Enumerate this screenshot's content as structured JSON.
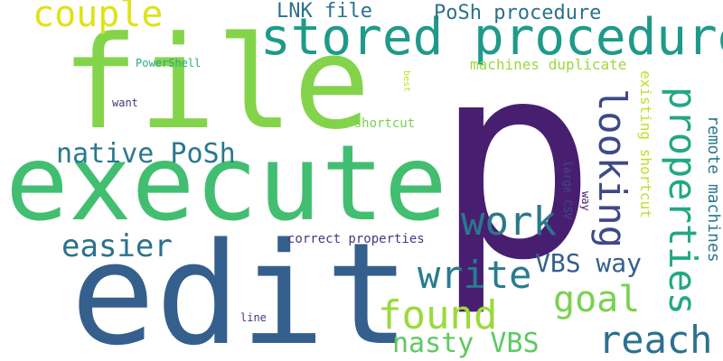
{
  "words": {
    "p": {
      "text": "p",
      "size": 300,
      "color": "#481f70"
    },
    "edit": {
      "text": "edit",
      "size": 156,
      "color": "#355f8d"
    },
    "execute": {
      "text": "execute",
      "size": 116,
      "color": "#42be71"
    },
    "file": {
      "text": "file",
      "size": 142,
      "color": "#84d44b"
    },
    "stored_procedure": {
      "text": "stored procedure",
      "size": 56,
      "color": "#1f9a8a"
    },
    "couple": {
      "text": "couple",
      "size": 40,
      "color": "#dde318"
    },
    "work": {
      "text": "work",
      "size": 44,
      "color": "#2a788e"
    },
    "found": {
      "text": "found",
      "size": 44,
      "color": "#9bd93c"
    },
    "write": {
      "text": "write",
      "size": 42,
      "color": "#287c8e"
    },
    "looking": {
      "text": "looking",
      "size": 42,
      "color": "#3e4989"
    },
    "properties": {
      "text": "properties",
      "size": 42,
      "color": "#22a884"
    },
    "reach": {
      "text": "reach",
      "size": 42,
      "color": "#2c718e"
    },
    "goal": {
      "text": "goal",
      "size": 40,
      "color": "#7ad151"
    },
    "native_posh": {
      "text": "native PoSh",
      "size": 30,
      "color": "#2a788e"
    },
    "easier": {
      "text": "easier",
      "size": 34,
      "color": "#2c718e"
    },
    "nasty_vbs": {
      "text": "nasty VBS",
      "size": 30,
      "color": "#5ec962"
    },
    "vbs_way": {
      "text": "VBS way",
      "size": 28,
      "color": "#355f8d"
    },
    "lnk_file": {
      "text": "LNK file",
      "size": 22,
      "color": "#2c718e"
    },
    "posh_procedure": {
      "text": "PoSh procedure",
      "size": 22,
      "color": "#2c718e"
    },
    "machines_duplicate": {
      "text": "machines duplicate",
      "size": 16,
      "color": "#9bd93c"
    },
    "existing_shortcut": {
      "text": "existing shortcut",
      "size": 16,
      "color": "#c2df23"
    },
    "remote_machines": {
      "text": "remote machines",
      "size": 18,
      "color": "#2a788e"
    },
    "new_shortcut": {
      "text": "new shortcut",
      "size": 14,
      "color": "#7ad151"
    },
    "correct_properties": {
      "text": "correct properties",
      "size": 14,
      "color": "#443983"
    },
    "powershell": {
      "text": "PowerShell",
      "size": 12,
      "color": "#25ab82"
    },
    "want": {
      "text": "want",
      "size": 12,
      "color": "#443983"
    },
    "best": {
      "text": "best",
      "size": 10,
      "color": "#c2df23"
    },
    "large_csv": {
      "text": "large CSV",
      "size": 12,
      "color": "#3e4989"
    },
    "way_small": {
      "text": "way",
      "size": 12,
      "color": "#481f70"
    },
    "line": {
      "text": "line",
      "size": 12,
      "color": "#443983"
    }
  }
}
